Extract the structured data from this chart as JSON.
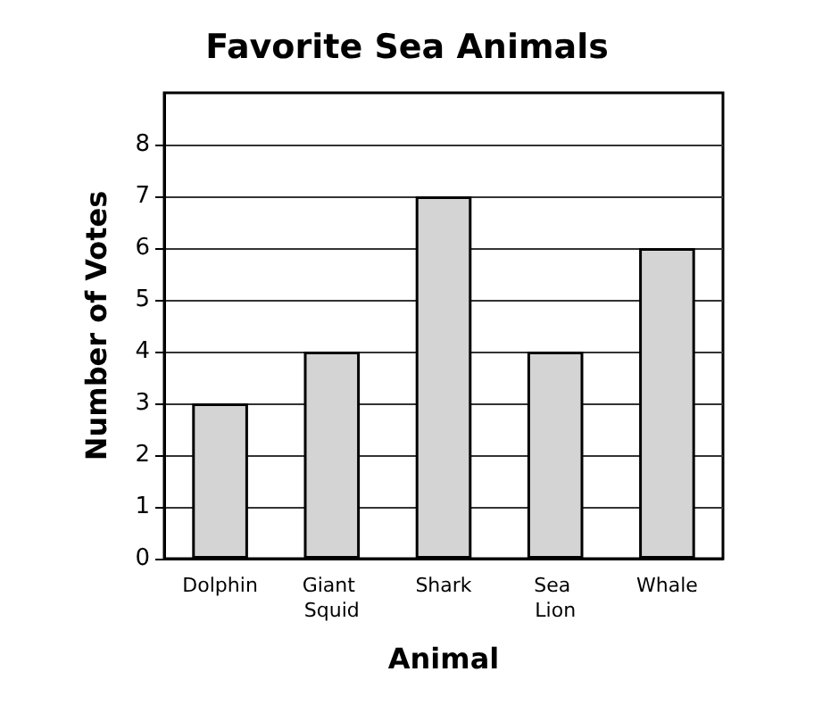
{
  "chart_data": {
    "type": "bar",
    "title": "Favorite Sea Animals",
    "xlabel": "Animal",
    "ylabel": "Number of Votes",
    "categories": [
      "Dolphin",
      "Giant Squid",
      "Shark",
      "Sea Lion",
      "Whale"
    ],
    "values": [
      3,
      4,
      7,
      4,
      6
    ],
    "color": "#d4d4d4",
    "ylim": [
      0,
      9
    ],
    "yticks": [
      0,
      1,
      2,
      3,
      4,
      5,
      6,
      7,
      8
    ],
    "grid": "y"
  }
}
